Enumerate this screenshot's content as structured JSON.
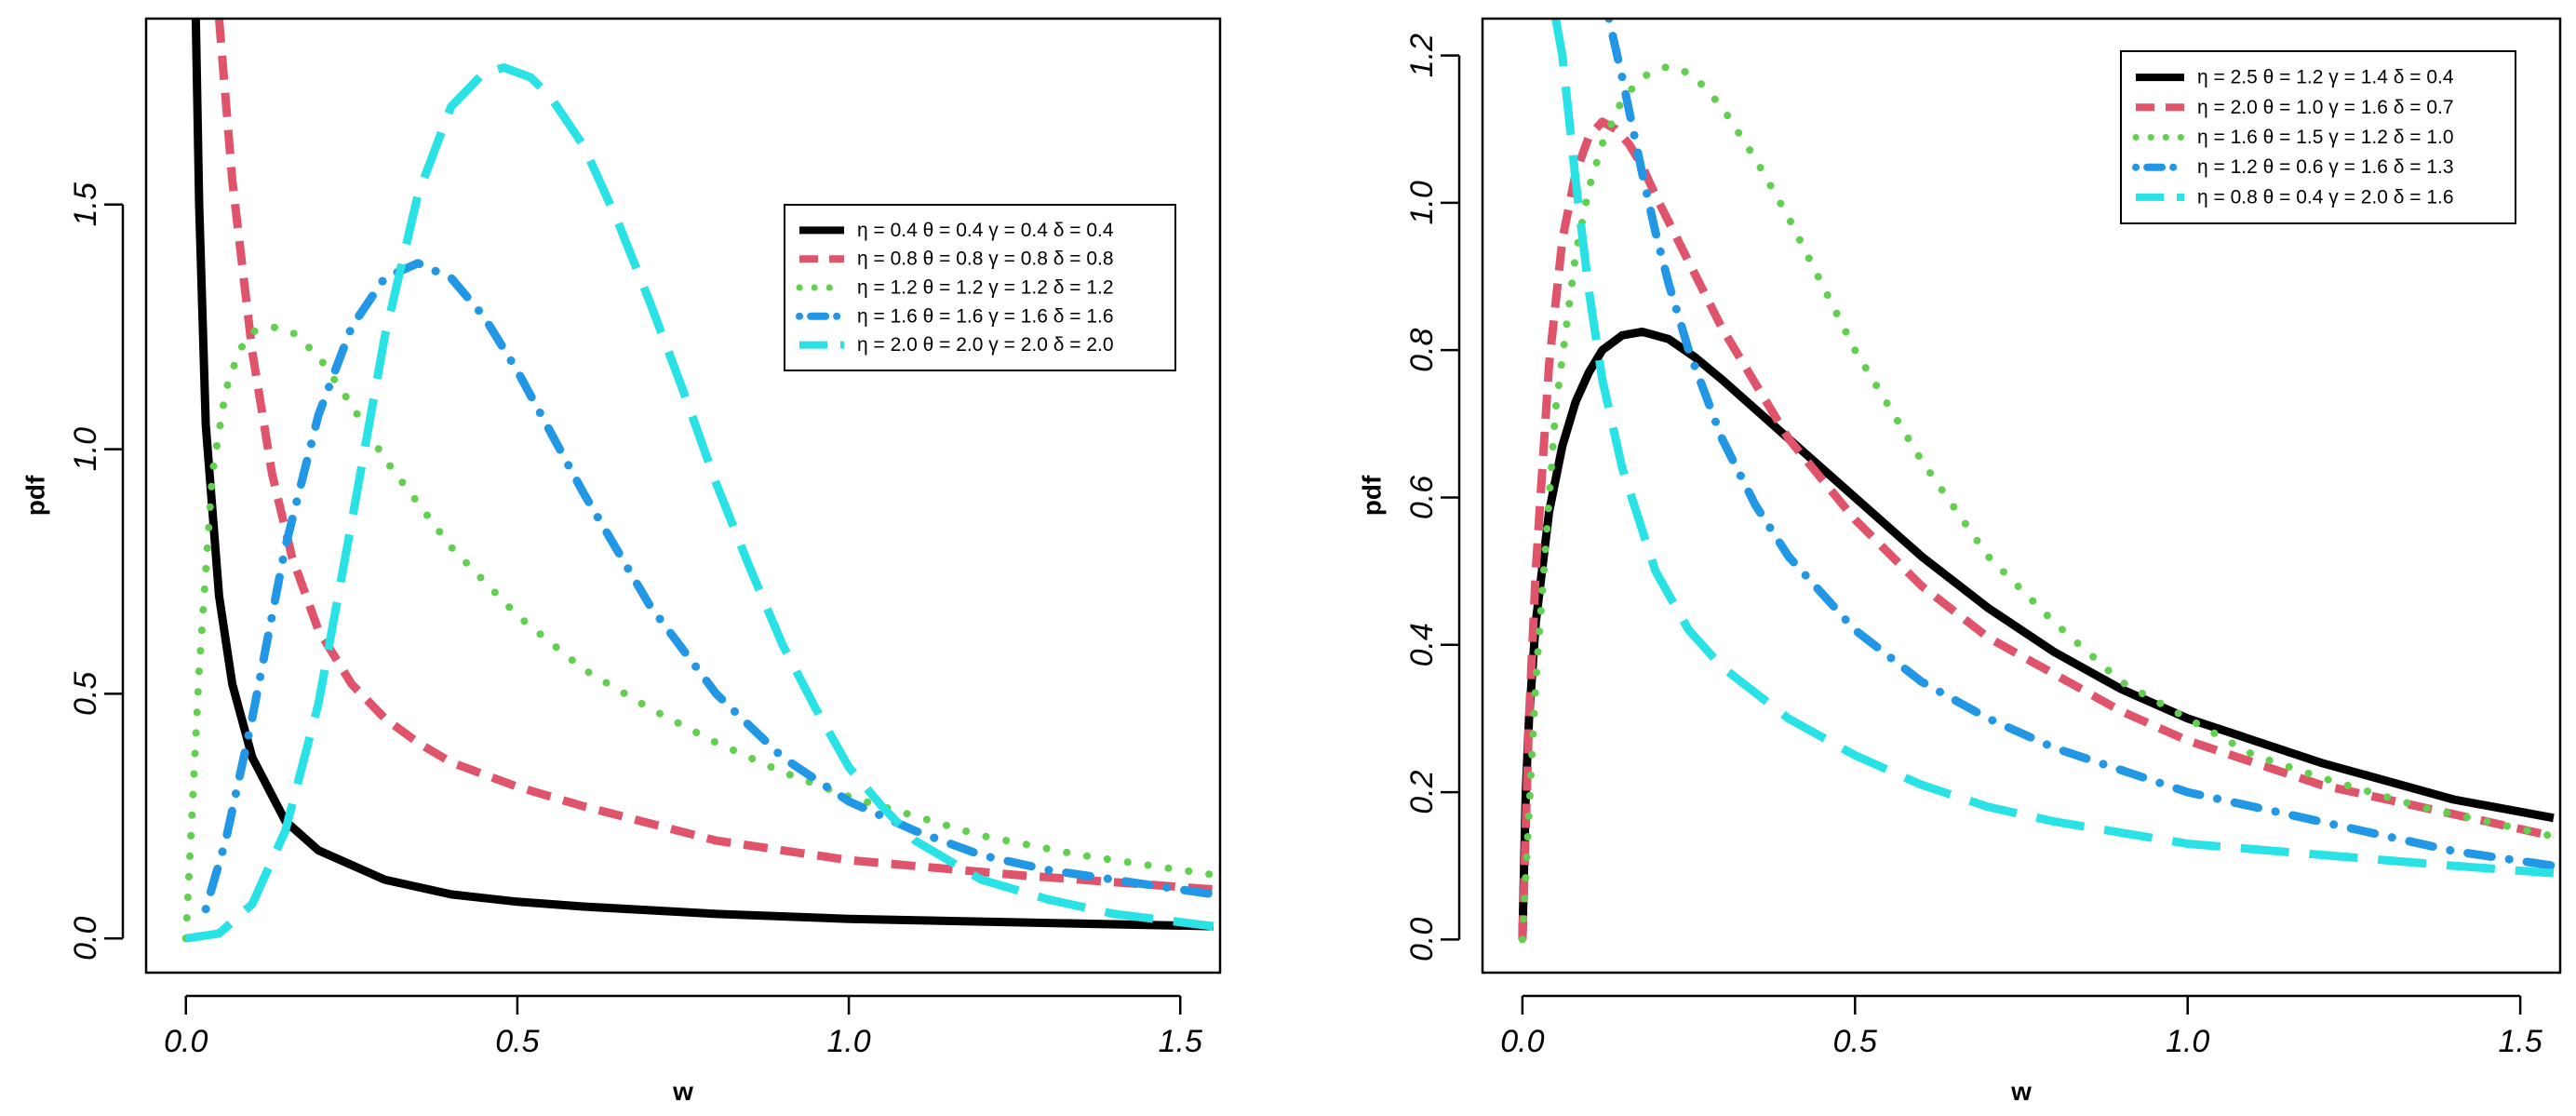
{
  "chart_data": [
    {
      "type": "line",
      "xlabel": "w",
      "ylabel": "pdf",
      "xlim": [
        -0.06,
        1.56
      ],
      "ylim": [
        -0.07,
        1.88
      ],
      "xticks": [
        0.0,
        0.5,
        1.0,
        1.5
      ],
      "xtick_labels": [
        "0.0",
        "0.5",
        "1.0",
        "1.5"
      ],
      "yticks": [
        0.0,
        0.5,
        1.0,
        1.5
      ],
      "ytick_labels": [
        "0.0",
        "0.5",
        "1.0",
        "1.5"
      ],
      "grid": false,
      "legend_position": "top-right",
      "series": [
        {
          "name": "η = 0.4  θ = 0.4  γ = 0.4  δ = 0.4",
          "color": "#000000",
          "style": "solid",
          "x": [
            0.015,
            0.02,
            0.03,
            0.05,
            0.07,
            0.1,
            0.15,
            0.2,
            0.3,
            0.4,
            0.5,
            0.6,
            0.8,
            1.0,
            1.25,
            1.55
          ],
          "y": [
            1.88,
            1.5,
            1.05,
            0.7,
            0.52,
            0.37,
            0.24,
            0.18,
            0.12,
            0.09,
            0.075,
            0.065,
            0.05,
            0.04,
            0.033,
            0.025
          ]
        },
        {
          "name": "η = 0.8  θ = 0.8  γ = 0.8  δ = 0.8",
          "color": "#DF536B",
          "style": "dashed",
          "x": [
            0.05,
            0.07,
            0.1,
            0.13,
            0.16,
            0.2,
            0.25,
            0.3,
            0.35,
            0.4,
            0.5,
            0.6,
            0.8,
            1.0,
            1.25,
            1.55
          ],
          "y": [
            1.88,
            1.55,
            1.2,
            0.95,
            0.78,
            0.63,
            0.52,
            0.45,
            0.4,
            0.36,
            0.31,
            0.27,
            0.2,
            0.16,
            0.13,
            0.1
          ]
        },
        {
          "name": "η = 1.2  θ = 1.2  γ = 1.2  δ = 1.2",
          "color": "#61D04F",
          "style": "dotted",
          "x": [
            0.0,
            0.02,
            0.04,
            0.06,
            0.08,
            0.1,
            0.13,
            0.16,
            0.2,
            0.25,
            0.3,
            0.4,
            0.5,
            0.6,
            0.7,
            0.8,
            0.9,
            1.0,
            1.1,
            1.2,
            1.35,
            1.55
          ],
          "y": [
            0.0,
            0.55,
            0.95,
            1.12,
            1.2,
            1.24,
            1.25,
            1.24,
            1.19,
            1.09,
            0.98,
            0.8,
            0.66,
            0.55,
            0.47,
            0.4,
            0.34,
            0.29,
            0.25,
            0.21,
            0.17,
            0.13
          ]
        },
        {
          "name": "η = 1.6  θ = 1.6  γ = 1.6  δ = 1.6",
          "color": "#2297E6",
          "style": "dotdash",
          "x": [
            0.03,
            0.06,
            0.1,
            0.15,
            0.2,
            0.25,
            0.3,
            0.35,
            0.4,
            0.45,
            0.5,
            0.6,
            0.7,
            0.8,
            0.9,
            1.0,
            1.1,
            1.2,
            1.3,
            1.4,
            1.55
          ],
          "y": [
            0.06,
            0.2,
            0.45,
            0.8,
            1.07,
            1.25,
            1.35,
            1.38,
            1.35,
            1.27,
            1.16,
            0.91,
            0.68,
            0.5,
            0.37,
            0.28,
            0.22,
            0.17,
            0.14,
            0.12,
            0.09
          ]
        },
        {
          "name": "η = 2.0  θ = 2.0  γ = 2.0  δ = 2.0",
          "color": "#28E2E5",
          "style": "longdash",
          "x": [
            0.0,
            0.05,
            0.1,
            0.15,
            0.2,
            0.25,
            0.3,
            0.35,
            0.4,
            0.45,
            0.48,
            0.52,
            0.55,
            0.6,
            0.65,
            0.7,
            0.75,
            0.8,
            0.85,
            0.9,
            0.95,
            1.0,
            1.05,
            1.1,
            1.2,
            1.3,
            1.4,
            1.55
          ],
          "y": [
            0.0,
            0.01,
            0.07,
            0.22,
            0.48,
            0.85,
            1.23,
            1.52,
            1.7,
            1.77,
            1.78,
            1.76,
            1.72,
            1.62,
            1.47,
            1.3,
            1.12,
            0.93,
            0.76,
            0.6,
            0.47,
            0.35,
            0.27,
            0.2,
            0.12,
            0.08,
            0.05,
            0.025
          ]
        }
      ]
    },
    {
      "type": "line",
      "xlabel": "w",
      "ylabel": "pdf",
      "xlim": [
        -0.06,
        1.56
      ],
      "ylim": [
        -0.045,
        1.25
      ],
      "xticks": [
        0.0,
        0.5,
        1.0,
        1.5
      ],
      "xtick_labels": [
        "0.0",
        "0.5",
        "1.0",
        "1.5"
      ],
      "yticks": [
        0.0,
        0.2,
        0.4,
        0.6,
        0.8,
        1.0,
        1.2
      ],
      "ytick_labels": [
        "0.0",
        "0.2",
        "0.4",
        "0.6",
        "0.8",
        "1.0",
        "1.2"
      ],
      "grid": false,
      "legend_position": "top-right",
      "series": [
        {
          "name": "η = 2.5  θ = 1.2  γ = 1.4  δ = 0.4",
          "color": "#000000",
          "style": "solid",
          "x": [
            0.0,
            0.005,
            0.01,
            0.02,
            0.04,
            0.06,
            0.08,
            0.1,
            0.12,
            0.15,
            0.18,
            0.22,
            0.26,
            0.3,
            0.4,
            0.5,
            0.6,
            0.7,
            0.8,
            0.9,
            1.0,
            1.2,
            1.4,
            1.55
          ],
          "y": [
            0.0,
            0.2,
            0.3,
            0.43,
            0.58,
            0.67,
            0.73,
            0.77,
            0.8,
            0.82,
            0.825,
            0.815,
            0.79,
            0.76,
            0.68,
            0.6,
            0.52,
            0.45,
            0.39,
            0.34,
            0.3,
            0.24,
            0.19,
            0.165
          ]
        },
        {
          "name": "η = 2.0  θ = 1.0  γ = 1.6  δ = 0.7",
          "color": "#DF536B",
          "style": "dashed",
          "x": [
            0.0,
            0.01,
            0.02,
            0.04,
            0.06,
            0.08,
            0.1,
            0.12,
            0.14,
            0.16,
            0.18,
            0.2,
            0.25,
            0.3,
            0.4,
            0.5,
            0.6,
            0.7,
            0.8,
            0.9,
            1.0,
            1.2,
            1.4,
            1.55
          ],
          "y": [
            0.0,
            0.3,
            0.5,
            0.78,
            0.95,
            1.04,
            1.09,
            1.11,
            1.1,
            1.08,
            1.05,
            1.01,
            0.92,
            0.83,
            0.68,
            0.57,
            0.48,
            0.41,
            0.36,
            0.31,
            0.27,
            0.21,
            0.17,
            0.14
          ]
        },
        {
          "name": "η = 1.6  θ = 1.5  γ = 1.2  δ = 1.0",
          "color": "#61D04F",
          "style": "dotted",
          "x": [
            0.0,
            0.02,
            0.05,
            0.08,
            0.1,
            0.12,
            0.15,
            0.18,
            0.2,
            0.22,
            0.24,
            0.26,
            0.28,
            0.3,
            0.35,
            0.4,
            0.45,
            0.5,
            0.6,
            0.7,
            0.8,
            0.9,
            1.0,
            1.1,
            1.2,
            1.35,
            1.55
          ],
          "y": [
            0.0,
            0.35,
            0.72,
            0.93,
            1.02,
            1.08,
            1.14,
            1.17,
            1.18,
            1.185,
            1.18,
            1.17,
            1.15,
            1.13,
            1.06,
            0.98,
            0.89,
            0.8,
            0.65,
            0.52,
            0.43,
            0.35,
            0.3,
            0.25,
            0.22,
            0.18,
            0.14
          ]
        },
        {
          "name": "η = 1.2  θ = 0.6  γ = 1.6  δ = 1.3",
          "color": "#2297E6",
          "style": "dotdash",
          "x": [
            0.13,
            0.15,
            0.18,
            0.2,
            0.22,
            0.25,
            0.3,
            0.35,
            0.4,
            0.5,
            0.6,
            0.7,
            0.8,
            0.9,
            1.0,
            1.2,
            1.4,
            1.55
          ],
          "y": [
            1.25,
            1.17,
            1.04,
            0.96,
            0.89,
            0.8,
            0.68,
            0.59,
            0.52,
            0.42,
            0.35,
            0.3,
            0.26,
            0.23,
            0.2,
            0.16,
            0.12,
            0.1
          ]
        },
        {
          "name": "η = 0.8  θ = 0.4  γ = 2.0  δ = 1.6",
          "color": "#28E2E5",
          "style": "longdash",
          "x": [
            0.05,
            0.06,
            0.08,
            0.1,
            0.12,
            0.15,
            0.2,
            0.25,
            0.3,
            0.4,
            0.5,
            0.6,
            0.7,
            0.8,
            1.0,
            1.2,
            1.4,
            1.55
          ],
          "y": [
            1.25,
            1.2,
            1.03,
            0.88,
            0.76,
            0.64,
            0.5,
            0.42,
            0.37,
            0.3,
            0.25,
            0.21,
            0.18,
            0.16,
            0.13,
            0.115,
            0.1,
            0.09
          ]
        }
      ]
    }
  ]
}
